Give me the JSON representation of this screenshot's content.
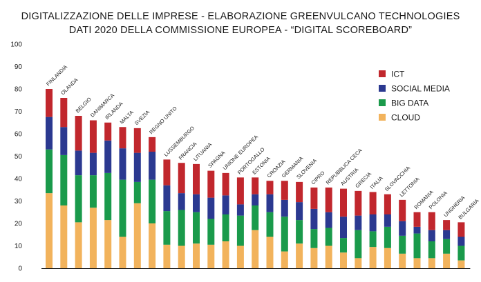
{
  "chart_data": {
    "type": "bar",
    "stacked": true,
    "title": "DIGITALIZZAZIONE DELLE IMPRESE - ELABORAZIONE GREENVULCANO TECHNOLOGIES",
    "subtitle": "DATI 2020 DELLA COMMISSIONE EUROPEA - “DIGITAL SCOREBOARD”",
    "xlabel": "",
    "ylabel": "",
    "ylim": [
      0,
      100
    ],
    "yticks": [
      0,
      10,
      20,
      30,
      40,
      50,
      60,
      70,
      80,
      90,
      100
    ],
    "grid": false,
    "legend_position": "right",
    "categories": [
      "FINLANDIA",
      "OLANDA",
      "BELGIO",
      "DANIMARCA",
      "IRLANDA",
      "MALTA",
      "SVEZIA",
      "REGNO UNITO",
      "LUSSEMBURGO",
      "FRANCIA",
      "LITUANIA",
      "SPAGNA",
      "UNIONE EUROPEA",
      "PORTOGALLO",
      "ESTONIA",
      "CROAZIA",
      "GERMANIA",
      "SLOVENIA",
      "CIPRO",
      "REPUBBLICA CECA",
      "AUSTRIA",
      "GRECIA",
      "ITALIA",
      "SLOVACCHIA",
      "LETTONIA",
      "ROMANIA",
      "POLONIA",
      "UNGHERIA",
      "BULGARIA"
    ],
    "series": [
      {
        "name": "CLOUD",
        "color": "#f2b35c",
        "values": [
          33.5,
          28,
          20.5,
          27,
          21.5,
          14,
          29,
          20,
          10.5,
          10,
          11,
          10.5,
          12,
          10,
          17,
          14,
          7.5,
          11,
          9,
          10,
          7,
          4.5,
          9.5,
          9,
          6.5,
          4.5,
          4.5,
          6.5,
          3.5
        ]
      },
      {
        "name": "BIG DATA",
        "color": "#1a9a4b",
        "values": [
          19.5,
          22.5,
          21,
          14.5,
          21,
          25.5,
          9.5,
          19.5,
          15,
          16,
          14,
          11.5,
          12,
          13.5,
          11,
          11,
          15.5,
          10.5,
          8.5,
          8,
          6.5,
          12.5,
          7,
          9.5,
          8,
          11,
          7.5,
          6.5,
          6.5
        ]
      },
      {
        "name": "SOCIAL MEDIA",
        "color": "#2b3990",
        "values": [
          14.5,
          12.5,
          11,
          10,
          14.5,
          14,
          13,
          12.5,
          11.5,
          7.5,
          8,
          9.5,
          8.5,
          5,
          5,
          8,
          7.5,
          8,
          9,
          7,
          9.5,
          6.5,
          7.5,
          5.5,
          6.5,
          3,
          5,
          4,
          4
        ]
      },
      {
        "name": "ICT",
        "color": "#c1272d",
        "values": [
          12.5,
          13,
          15.5,
          14.5,
          8,
          9.5,
          11,
          6.5,
          11.5,
          13.5,
          13.5,
          12,
          10,
          12,
          7.5,
          6,
          8.5,
          9,
          9.5,
          11,
          12.5,
          11,
          10,
          9,
          9.5,
          6.5,
          8,
          4.5,
          6.5
        ]
      }
    ]
  }
}
